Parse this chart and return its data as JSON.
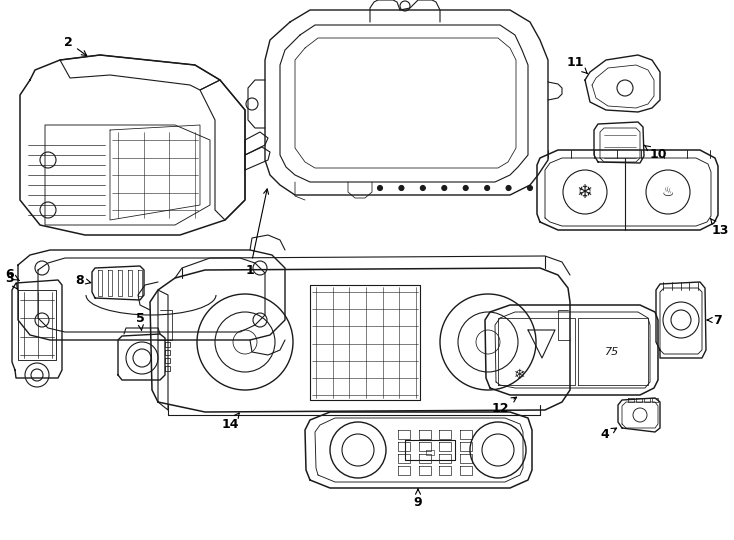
{
  "background_color": "#ffffff",
  "line_color": "#1a1a1a",
  "line_width": 0.8,
  "fig_width": 7.34,
  "fig_height": 5.4,
  "dpi": 100
}
